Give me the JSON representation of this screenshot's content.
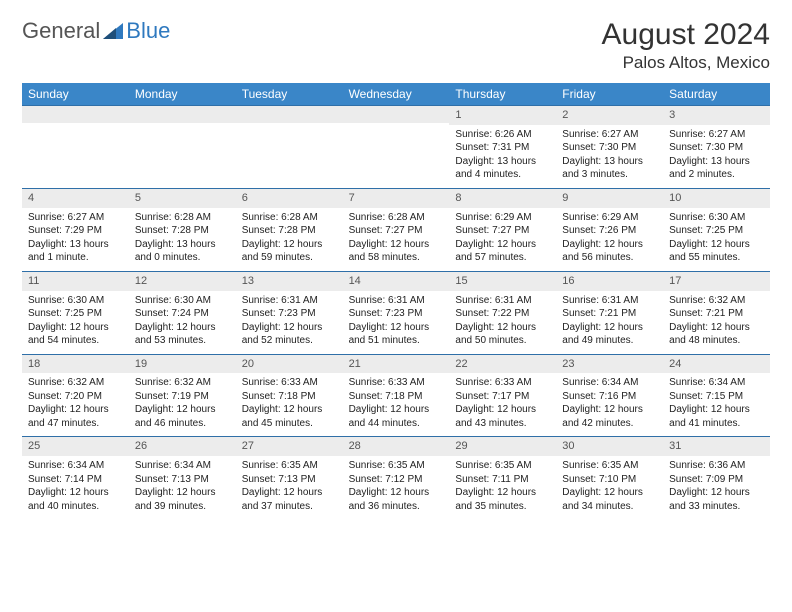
{
  "brand": {
    "general": "General",
    "blue": "Blue"
  },
  "title": "August 2024",
  "location": "Palos Altos, Mexico",
  "colors": {
    "header_bg": "#3a86c8",
    "header_text": "#ffffff",
    "cell_border": "#2f6fa8",
    "daynum_bg": "#ececec",
    "daynum_text": "#555555",
    "body_text": "#222222",
    "logo_gray": "#555555",
    "logo_blue": "#2f79bf",
    "page_bg": "#ffffff"
  },
  "typography": {
    "title_fontsize": 30,
    "location_fontsize": 17,
    "day_header_fontsize": 12,
    "cell_fontsize": 10,
    "logo_fontsize": 22
  },
  "day_headers": [
    "Sunday",
    "Monday",
    "Tuesday",
    "Wednesday",
    "Thursday",
    "Friday",
    "Saturday"
  ],
  "cells": [
    {
      "n": "",
      "sr": "",
      "ss": "",
      "dl": ""
    },
    {
      "n": "",
      "sr": "",
      "ss": "",
      "dl": ""
    },
    {
      "n": "",
      "sr": "",
      "ss": "",
      "dl": ""
    },
    {
      "n": "",
      "sr": "",
      "ss": "",
      "dl": ""
    },
    {
      "n": "1",
      "sr": "Sunrise: 6:26 AM",
      "ss": "Sunset: 7:31 PM",
      "dl": "Daylight: 13 hours and 4 minutes."
    },
    {
      "n": "2",
      "sr": "Sunrise: 6:27 AM",
      "ss": "Sunset: 7:30 PM",
      "dl": "Daylight: 13 hours and 3 minutes."
    },
    {
      "n": "3",
      "sr": "Sunrise: 6:27 AM",
      "ss": "Sunset: 7:30 PM",
      "dl": "Daylight: 13 hours and 2 minutes."
    },
    {
      "n": "4",
      "sr": "Sunrise: 6:27 AM",
      "ss": "Sunset: 7:29 PM",
      "dl": "Daylight: 13 hours and 1 minute."
    },
    {
      "n": "5",
      "sr": "Sunrise: 6:28 AM",
      "ss": "Sunset: 7:28 PM",
      "dl": "Daylight: 13 hours and 0 minutes."
    },
    {
      "n": "6",
      "sr": "Sunrise: 6:28 AM",
      "ss": "Sunset: 7:28 PM",
      "dl": "Daylight: 12 hours and 59 minutes."
    },
    {
      "n": "7",
      "sr": "Sunrise: 6:28 AM",
      "ss": "Sunset: 7:27 PM",
      "dl": "Daylight: 12 hours and 58 minutes."
    },
    {
      "n": "8",
      "sr": "Sunrise: 6:29 AM",
      "ss": "Sunset: 7:27 PM",
      "dl": "Daylight: 12 hours and 57 minutes."
    },
    {
      "n": "9",
      "sr": "Sunrise: 6:29 AM",
      "ss": "Sunset: 7:26 PM",
      "dl": "Daylight: 12 hours and 56 minutes."
    },
    {
      "n": "10",
      "sr": "Sunrise: 6:30 AM",
      "ss": "Sunset: 7:25 PM",
      "dl": "Daylight: 12 hours and 55 minutes."
    },
    {
      "n": "11",
      "sr": "Sunrise: 6:30 AM",
      "ss": "Sunset: 7:25 PM",
      "dl": "Daylight: 12 hours and 54 minutes."
    },
    {
      "n": "12",
      "sr": "Sunrise: 6:30 AM",
      "ss": "Sunset: 7:24 PM",
      "dl": "Daylight: 12 hours and 53 minutes."
    },
    {
      "n": "13",
      "sr": "Sunrise: 6:31 AM",
      "ss": "Sunset: 7:23 PM",
      "dl": "Daylight: 12 hours and 52 minutes."
    },
    {
      "n": "14",
      "sr": "Sunrise: 6:31 AM",
      "ss": "Sunset: 7:23 PM",
      "dl": "Daylight: 12 hours and 51 minutes."
    },
    {
      "n": "15",
      "sr": "Sunrise: 6:31 AM",
      "ss": "Sunset: 7:22 PM",
      "dl": "Daylight: 12 hours and 50 minutes."
    },
    {
      "n": "16",
      "sr": "Sunrise: 6:31 AM",
      "ss": "Sunset: 7:21 PM",
      "dl": "Daylight: 12 hours and 49 minutes."
    },
    {
      "n": "17",
      "sr": "Sunrise: 6:32 AM",
      "ss": "Sunset: 7:21 PM",
      "dl": "Daylight: 12 hours and 48 minutes."
    },
    {
      "n": "18",
      "sr": "Sunrise: 6:32 AM",
      "ss": "Sunset: 7:20 PM",
      "dl": "Daylight: 12 hours and 47 minutes."
    },
    {
      "n": "19",
      "sr": "Sunrise: 6:32 AM",
      "ss": "Sunset: 7:19 PM",
      "dl": "Daylight: 12 hours and 46 minutes."
    },
    {
      "n": "20",
      "sr": "Sunrise: 6:33 AM",
      "ss": "Sunset: 7:18 PM",
      "dl": "Daylight: 12 hours and 45 minutes."
    },
    {
      "n": "21",
      "sr": "Sunrise: 6:33 AM",
      "ss": "Sunset: 7:18 PM",
      "dl": "Daylight: 12 hours and 44 minutes."
    },
    {
      "n": "22",
      "sr": "Sunrise: 6:33 AM",
      "ss": "Sunset: 7:17 PM",
      "dl": "Daylight: 12 hours and 43 minutes."
    },
    {
      "n": "23",
      "sr": "Sunrise: 6:34 AM",
      "ss": "Sunset: 7:16 PM",
      "dl": "Daylight: 12 hours and 42 minutes."
    },
    {
      "n": "24",
      "sr": "Sunrise: 6:34 AM",
      "ss": "Sunset: 7:15 PM",
      "dl": "Daylight: 12 hours and 41 minutes."
    },
    {
      "n": "25",
      "sr": "Sunrise: 6:34 AM",
      "ss": "Sunset: 7:14 PM",
      "dl": "Daylight: 12 hours and 40 minutes."
    },
    {
      "n": "26",
      "sr": "Sunrise: 6:34 AM",
      "ss": "Sunset: 7:13 PM",
      "dl": "Daylight: 12 hours and 39 minutes."
    },
    {
      "n": "27",
      "sr": "Sunrise: 6:35 AM",
      "ss": "Sunset: 7:13 PM",
      "dl": "Daylight: 12 hours and 37 minutes."
    },
    {
      "n": "28",
      "sr": "Sunrise: 6:35 AM",
      "ss": "Sunset: 7:12 PM",
      "dl": "Daylight: 12 hours and 36 minutes."
    },
    {
      "n": "29",
      "sr": "Sunrise: 6:35 AM",
      "ss": "Sunset: 7:11 PM",
      "dl": "Daylight: 12 hours and 35 minutes."
    },
    {
      "n": "30",
      "sr": "Sunrise: 6:35 AM",
      "ss": "Sunset: 7:10 PM",
      "dl": "Daylight: 12 hours and 34 minutes."
    },
    {
      "n": "31",
      "sr": "Sunrise: 6:36 AM",
      "ss": "Sunset: 7:09 PM",
      "dl": "Daylight: 12 hours and 33 minutes."
    }
  ]
}
